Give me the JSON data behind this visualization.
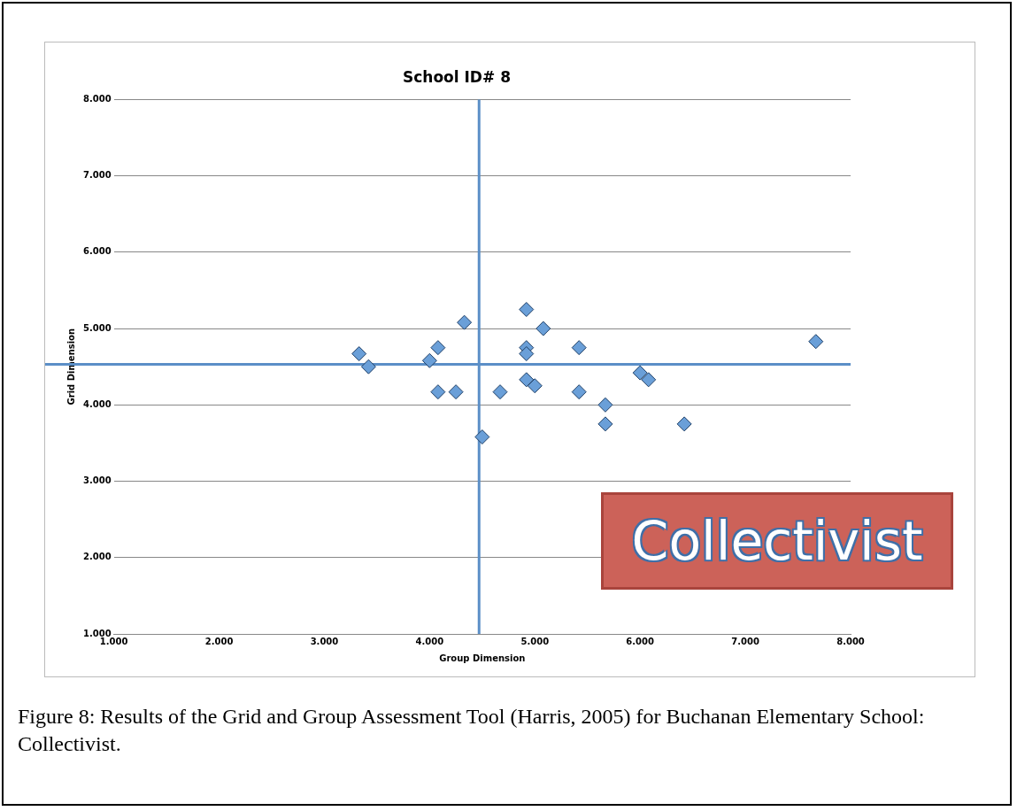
{
  "chart_data": {
    "type": "scatter",
    "title": "School ID# 8",
    "xlabel": "Group Dimension",
    "ylabel": "Grid Dimension",
    "x": [
      3.33,
      3.42,
      4.0,
      4.08,
      4.08,
      4.25,
      4.33,
      4.5,
      4.67,
      4.92,
      4.92,
      4.92,
      4.92,
      5.0,
      5.08,
      5.42,
      5.42,
      5.67,
      5.67,
      6.0,
      6.08,
      6.42,
      7.67
    ],
    "series": [
      {
        "color": "#6a9fd8",
        "values": [
          4.67,
          4.5,
          4.58,
          4.75,
          4.17,
          4.17,
          5.08,
          3.58,
          4.17,
          5.25,
          4.75,
          4.67,
          4.33,
          4.25,
          5.0,
          4.75,
          4.17,
          4.0,
          3.75,
          4.42,
          4.33,
          3.75,
          4.83
        ]
      }
    ],
    "xlim": [
      1,
      8
    ],
    "ylim": [
      1,
      8
    ],
    "xticks": [
      {
        "value": 1,
        "label": "1.000"
      },
      {
        "value": 2,
        "label": "2.000"
      },
      {
        "value": 3,
        "label": "3.000"
      },
      {
        "value": 4,
        "label": "4.000"
      },
      {
        "value": 5,
        "label": "5.000"
      },
      {
        "value": 6,
        "label": "6.000"
      },
      {
        "value": 7,
        "label": "7.000"
      },
      {
        "value": 8,
        "label": "8.000"
      }
    ],
    "yticks": [
      {
        "value": 1,
        "label": "1.000"
      },
      {
        "value": 2,
        "label": "2.000"
      },
      {
        "value": 3,
        "label": "3.000"
      },
      {
        "value": 4,
        "label": "4.000"
      },
      {
        "value": 5,
        "label": "5.000"
      },
      {
        "value": 6,
        "label": "6.000"
      },
      {
        "value": 7,
        "label": "7.000"
      },
      {
        "value": 8,
        "label": "8.000"
      }
    ],
    "ref_lines": [
      {
        "axis": "x",
        "value": 4.47,
        "color": "#5b8fc7"
      },
      {
        "axis": "y",
        "value": 4.53,
        "color": "#5b8fc7"
      }
    ],
    "grid": "y",
    "legend": false,
    "marker": "diamond",
    "annotations": [
      "Collectivist",
      "Figure 8: Results of the Grid and Group Assessment Tool (Harris, 2005) for Buchanan Elementary School: Collectivist."
    ]
  }
}
